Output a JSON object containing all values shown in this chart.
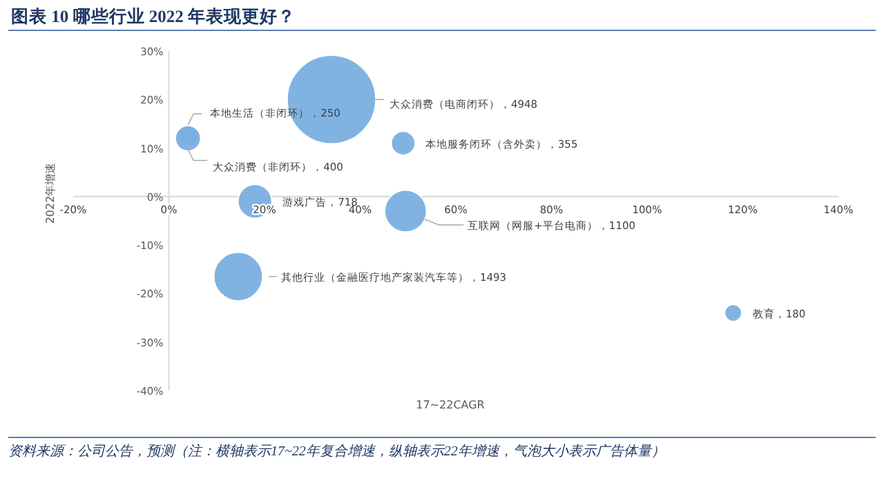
{
  "chart_data": {
    "type": "bubble",
    "title": "图表 10   哪些行业 2022 年表现更好？",
    "xlabel": "17~22CAGR",
    "ylabel": "2022年增速",
    "annotations": [
      "资料来源：公司公告，预测（注：横轴表示17~22年复合增速，纵轴表示22年增速，气泡大小表示广告体量）"
    ],
    "x": [
      4,
      4,
      34,
      49,
      18,
      49.5,
      14.5,
      118
    ],
    "values": [
      12.5,
      12,
      20,
      11,
      -1,
      -3,
      -16.5,
      -24
    ],
    "sizes": [
      250,
      400,
      4948,
      355,
      718,
      1100,
      1493,
      180
    ],
    "value_labels": [
      "本地生活（非闭环），250",
      "大众消费（非闭环），400",
      "大众消费（电商闭环），4948",
      "本地服务闭环（含外卖），355",
      "游戏广告，718",
      "互联网（网服+平台电商），1100",
      "其他行业（金融医疗地产家装汽车等），1493",
      "教育，180"
    ],
    "color": "#7aafe0",
    "xlim": [
      -20,
      140
    ],
    "ylim": [
      -40,
      30
    ],
    "xticks": [
      {
        "value": -20,
        "label": "-20%"
      },
      {
        "value": 0,
        "label": "0%"
      },
      {
        "value": 20,
        "label": "20%"
      },
      {
        "value": 40,
        "label": "40%"
      },
      {
        "value": 60,
        "label": "60%"
      },
      {
        "value": 80,
        "label": "80%"
      },
      {
        "value": 100,
        "label": "100%"
      },
      {
        "value": 120,
        "label": "120%"
      },
      {
        "value": 140,
        "label": "140%"
      }
    ],
    "yticks": [
      {
        "value": -40,
        "label": "-40%"
      },
      {
        "value": -30,
        "label": "-30%"
      },
      {
        "value": -20,
        "label": "-20%"
      },
      {
        "value": -10,
        "label": "-10%"
      },
      {
        "value": 0,
        "label": "0%"
      },
      {
        "value": 10,
        "label": "10%"
      },
      {
        "value": 20,
        "label": "20%"
      },
      {
        "value": 30,
        "label": "30%"
      }
    ],
    "grid": false
  }
}
